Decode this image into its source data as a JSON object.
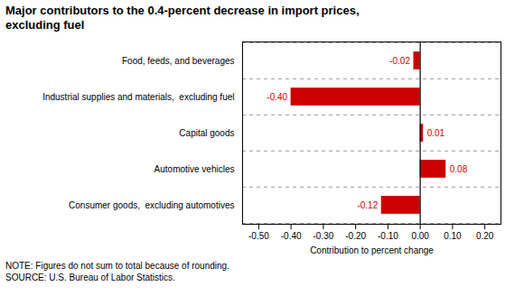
{
  "chart_data": {
    "type": "bar",
    "orientation": "horizontal",
    "title": "Major contributors to the 0.4-percent decrease in import prices,",
    "subtitle": "excluding fuel",
    "categories": [
      "Consumer goods,  excluding automotives",
      "Automotive vehicles",
      "Capital goods",
      "Industrial supplies and materials,  excluding fuel",
      "Food, feeds, and beverages"
    ],
    "values": [
      -0.12,
      0.08,
      0.01,
      -0.4,
      -0.02
    ],
    "value_labels": [
      "-0.12",
      "0.08",
      "0.01",
      "-0.40",
      "-0.02"
    ],
    "data_labels": true,
    "color": "#cc0000",
    "xlabel": "Contribution to percent change",
    "xlim": [
      -0.55,
      0.25
    ],
    "xticks": [
      {
        "value": -0.5,
        "label": "-0.50"
      },
      {
        "value": -0.4,
        "label": "-0.40"
      },
      {
        "value": -0.3,
        "label": "-0.30"
      },
      {
        "value": -0.2,
        "label": "-0.20"
      },
      {
        "value": -0.1,
        "label": "-0.10"
      },
      {
        "value": 0.0,
        "label": "0.00"
      },
      {
        "value": 0.1,
        "label": "0.10"
      },
      {
        "value": 0.2,
        "label": "0.20"
      }
    ],
    "grid": true,
    "annotations": [
      "NOTE: Figures do not sum to total because of rounding.",
      "SOURCE: U.S. Bureau of Labor Statistics."
    ]
  }
}
